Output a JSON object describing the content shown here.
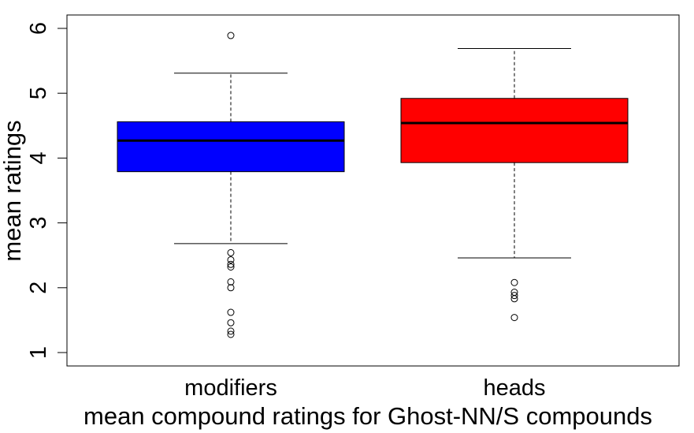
{
  "chart_data": {
    "type": "box",
    "xlabel": "mean compound ratings for Ghost-NN/S compounds",
    "ylabel": "mean ratings",
    "ylim": [
      0.8,
      6.2
    ],
    "yticks": [
      "1",
      "2",
      "3",
      "4",
      "5",
      "6"
    ],
    "grid": false,
    "categories": [
      "modifiers",
      "heads"
    ],
    "series": [
      {
        "category": "modifiers",
        "color": "#0000ff",
        "whisker_low": 2.68,
        "q1": 3.79,
        "median": 4.27,
        "q3": 4.56,
        "whisker_high": 5.31,
        "outliers": [
          5.89,
          2.54,
          2.43,
          2.36,
          2.32,
          2.09,
          2.0,
          1.62,
          1.46,
          1.33,
          1.28
        ]
      },
      {
        "category": "heads",
        "color": "#ff0000",
        "whisker_low": 2.46,
        "q1": 3.93,
        "median": 4.54,
        "q3": 4.92,
        "whisker_high": 5.69,
        "outliers": [
          2.08,
          1.93,
          1.88,
          1.83,
          1.54
        ]
      }
    ]
  }
}
